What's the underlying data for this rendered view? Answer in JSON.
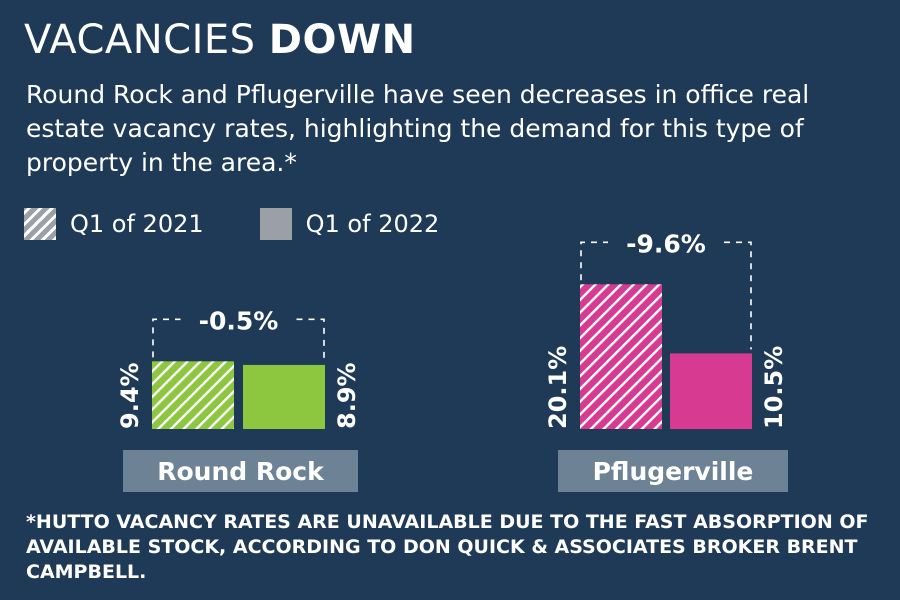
{
  "title_part1": "VACANCIES",
  "title_part2": "DOWN",
  "subtitle": "Round Rock and Pflugerville have seen decreases in office real estate vacancy rates, highlighting the demand for this type of property in the area.*",
  "legend": [
    {
      "label": "Q1 of 2021",
      "style": "hatched"
    },
    {
      "label": "Q1 of 2022",
      "style": "solid"
    }
  ],
  "chart_data": {
    "type": "bar",
    "categories": [
      "Round Rock",
      "Pflugerville"
    ],
    "series": [
      {
        "name": "Q1 of 2021",
        "values": [
          9.4,
          20.1
        ],
        "labels": [
          "9.4%",
          "20.1%"
        ]
      },
      {
        "name": "Q1 of 2022",
        "values": [
          8.9,
          10.5
        ],
        "labels": [
          "8.9%",
          "10.5%"
        ]
      }
    ],
    "changes": [
      "-0.5%",
      "-9.6%"
    ],
    "colors": [
      "#8dc63f",
      "#d63a91"
    ],
    "legend_placement": "top-left",
    "grid": false
  },
  "footnote": "*HUTTO VACANCY RATES ARE UNAVAILABLE DUE TO THE FAST ABSORPTION OF AVAILABLE STOCK, ACCORDING TO DON QUICK & ASSOCIATES BROKER BRENT CAMPBELL.",
  "colors": {
    "background": "#1f3a57",
    "category_label_bg": "#6e8296",
    "legend_swatch": "#9aa0a6"
  }
}
